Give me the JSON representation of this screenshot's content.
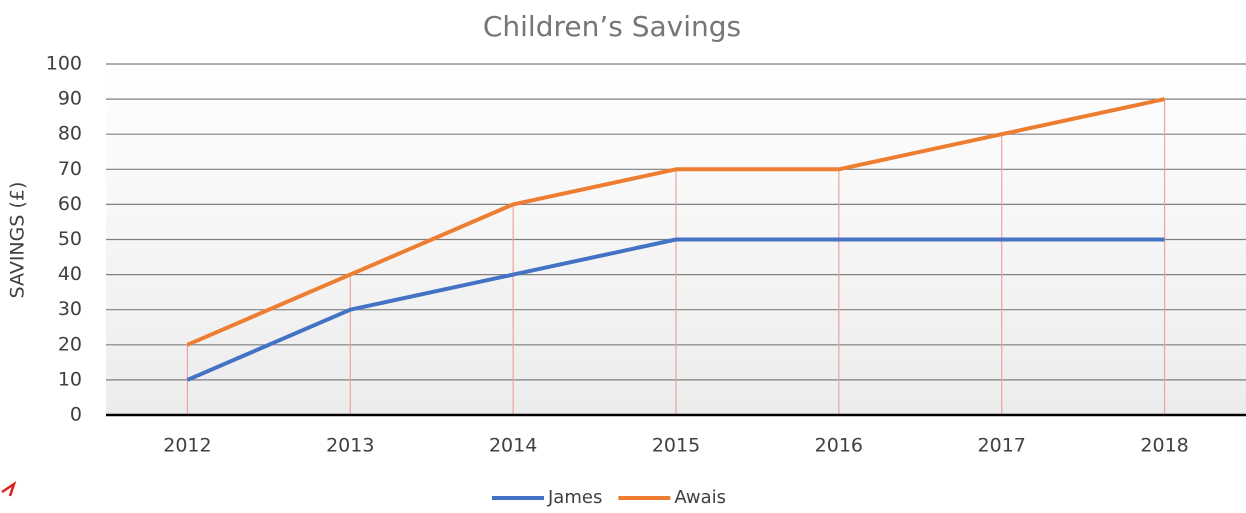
{
  "chart_data": {
    "type": "line",
    "title": "Children’s Savings",
    "y_label": "SAVINGS (£)",
    "categories": [
      "2012",
      "2013",
      "2014",
      "2015",
      "2016",
      "2017",
      "2018"
    ],
    "series": [
      {
        "name": "James",
        "color": "#4472c4",
        "values": [
          10,
          30,
          40,
          50,
          50,
          50,
          50
        ]
      },
      {
        "name": "Awais",
        "color": "#ed7d31",
        "values": [
          20,
          40,
          60,
          70,
          70,
          80,
          90
        ]
      }
    ],
    "ylim": [
      0,
      100
    ],
    "yticks": [
      0,
      10,
      20,
      30,
      40,
      50,
      60,
      70,
      80,
      90,
      100
    ],
    "grid": true,
    "drop_lines": true,
    "legend": "bottom"
  }
}
